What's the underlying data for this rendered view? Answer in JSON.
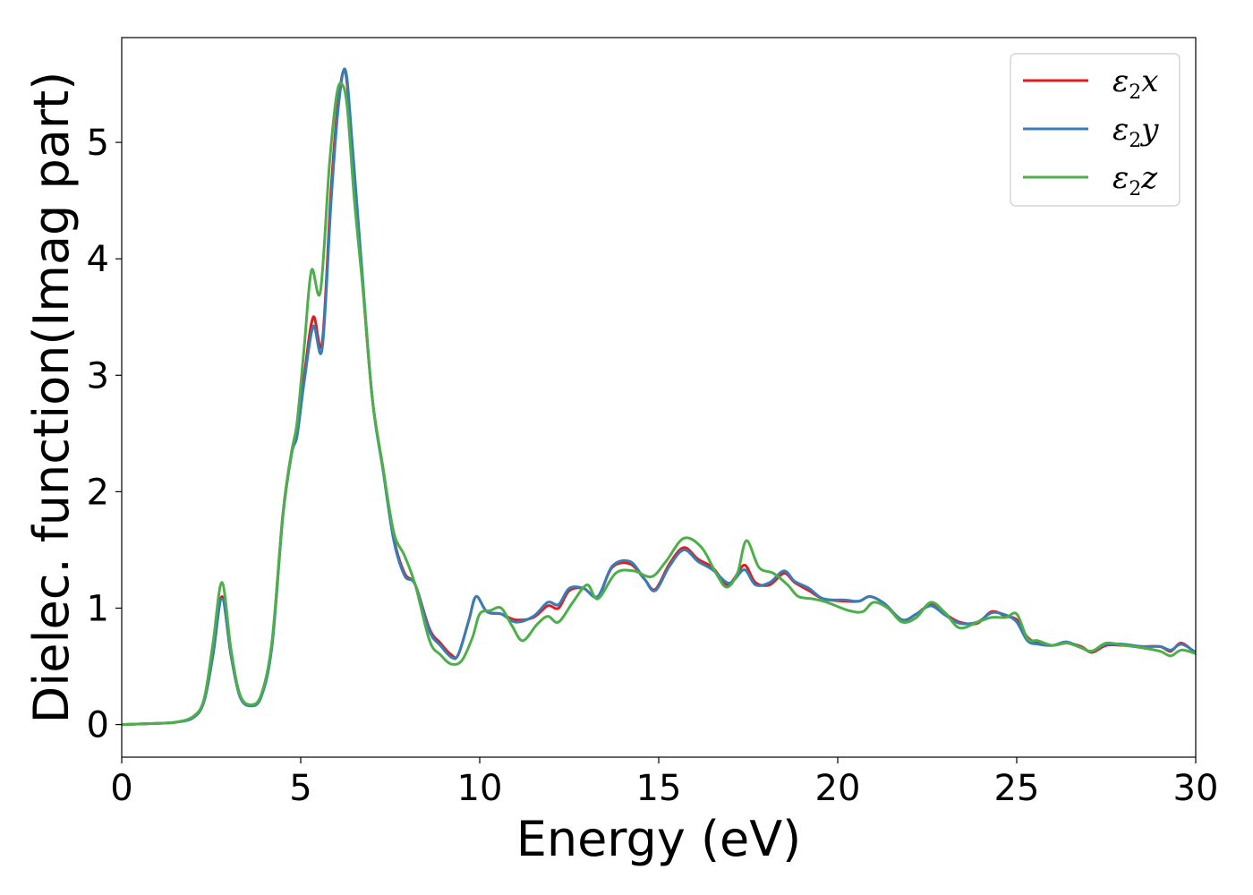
{
  "chart_data": {
    "type": "line",
    "title": "",
    "xlabel": "Energy (eV)",
    "ylabel": "Dielec. function(Imag part)",
    "xlim": [
      0,
      30
    ],
    "ylim": [
      -0.28,
      5.9
    ],
    "xticks": [
      0,
      5,
      10,
      15,
      20,
      25,
      30
    ],
    "xtick_labels": [
      "0",
      "5",
      "10",
      "15",
      "20",
      "25",
      "30"
    ],
    "yticks": [
      0,
      1,
      2,
      3,
      4,
      5
    ],
    "ytick_labels": [
      "0",
      "1",
      "2",
      "3",
      "4",
      "5"
    ],
    "grid": false,
    "legend_position": "top-right",
    "series": [
      {
        "name": "ε2x",
        "legend_base": "ε",
        "legend_sub": "2",
        "legend_suffix": "x",
        "color": "#e41a1c",
        "points": [
          [
            0,
            0.0
          ],
          [
            1.0,
            0.01
          ],
          [
            1.5,
            0.02
          ],
          [
            2.0,
            0.06
          ],
          [
            2.3,
            0.2
          ],
          [
            2.55,
            0.6
          ],
          [
            2.8,
            1.1
          ],
          [
            3.05,
            0.6
          ],
          [
            3.3,
            0.25
          ],
          [
            3.6,
            0.17
          ],
          [
            3.9,
            0.25
          ],
          [
            4.2,
            0.7
          ],
          [
            4.5,
            1.8
          ],
          [
            4.75,
            2.35
          ],
          [
            4.9,
            2.5
          ],
          [
            5.1,
            3.0
          ],
          [
            5.35,
            3.5
          ],
          [
            5.6,
            3.28
          ],
          [
            5.85,
            4.6
          ],
          [
            6.05,
            5.35
          ],
          [
            6.25,
            5.6
          ],
          [
            6.45,
            4.9
          ],
          [
            6.7,
            3.9
          ],
          [
            7.0,
            2.8
          ],
          [
            7.3,
            2.2
          ],
          [
            7.6,
            1.6
          ],
          [
            7.9,
            1.3
          ],
          [
            8.2,
            1.2
          ],
          [
            8.6,
            0.82
          ],
          [
            8.9,
            0.7
          ],
          [
            9.2,
            0.6
          ],
          [
            9.4,
            0.6
          ],
          [
            9.7,
            0.9
          ],
          [
            9.9,
            1.1
          ],
          [
            10.2,
            0.97
          ],
          [
            10.6,
            0.95
          ],
          [
            11.0,
            0.9
          ],
          [
            11.5,
            0.92
          ],
          [
            11.9,
            1.02
          ],
          [
            12.2,
            1.0
          ],
          [
            12.5,
            1.15
          ],
          [
            12.9,
            1.17
          ],
          [
            13.3,
            1.1
          ],
          [
            13.7,
            1.35
          ],
          [
            14.2,
            1.38
          ],
          [
            14.6,
            1.25
          ],
          [
            14.9,
            1.16
          ],
          [
            15.3,
            1.38
          ],
          [
            15.7,
            1.52
          ],
          [
            16.1,
            1.42
          ],
          [
            16.5,
            1.35
          ],
          [
            16.9,
            1.2
          ],
          [
            17.1,
            1.25
          ],
          [
            17.4,
            1.37
          ],
          [
            17.7,
            1.22
          ],
          [
            18.1,
            1.2
          ],
          [
            18.5,
            1.3
          ],
          [
            18.8,
            1.22
          ],
          [
            19.2,
            1.15
          ],
          [
            19.6,
            1.08
          ],
          [
            20.2,
            1.06
          ],
          [
            20.6,
            1.06
          ],
          [
            20.9,
            1.1
          ],
          [
            21.3,
            1.04
          ],
          [
            21.8,
            0.9
          ],
          [
            22.2,
            0.95
          ],
          [
            22.6,
            1.03
          ],
          [
            23.0,
            0.95
          ],
          [
            23.4,
            0.88
          ],
          [
            23.9,
            0.87
          ],
          [
            24.3,
            0.97
          ],
          [
            24.7,
            0.93
          ],
          [
            25.0,
            0.9
          ],
          [
            25.3,
            0.75
          ],
          [
            25.6,
            0.7
          ],
          [
            26.0,
            0.68
          ],
          [
            26.4,
            0.7
          ],
          [
            26.8,
            0.67
          ],
          [
            27.1,
            0.62
          ],
          [
            27.5,
            0.68
          ],
          [
            28.0,
            0.68
          ],
          [
            28.5,
            0.67
          ],
          [
            29.0,
            0.67
          ],
          [
            29.3,
            0.63
          ],
          [
            29.6,
            0.7
          ],
          [
            30.0,
            0.61
          ]
        ]
      },
      {
        "name": "ε2y",
        "legend_base": "ε",
        "legend_sub": "2",
        "legend_suffix": "y",
        "color": "#377eb8",
        "points": [
          [
            0,
            0.0
          ],
          [
            1.0,
            0.01
          ],
          [
            1.5,
            0.02
          ],
          [
            2.0,
            0.06
          ],
          [
            2.3,
            0.2
          ],
          [
            2.55,
            0.6
          ],
          [
            2.8,
            1.08
          ],
          [
            3.05,
            0.6
          ],
          [
            3.3,
            0.24
          ],
          [
            3.6,
            0.16
          ],
          [
            3.9,
            0.24
          ],
          [
            4.2,
            0.68
          ],
          [
            4.5,
            1.78
          ],
          [
            4.75,
            2.33
          ],
          [
            4.9,
            2.48
          ],
          [
            5.1,
            2.95
          ],
          [
            5.35,
            3.42
          ],
          [
            5.6,
            3.23
          ],
          [
            5.85,
            4.5
          ],
          [
            6.05,
            5.3
          ],
          [
            6.25,
            5.62
          ],
          [
            6.45,
            4.95
          ],
          [
            6.7,
            3.95
          ],
          [
            7.0,
            2.8
          ],
          [
            7.3,
            2.18
          ],
          [
            7.6,
            1.58
          ],
          [
            7.9,
            1.28
          ],
          [
            8.2,
            1.2
          ],
          [
            8.6,
            0.8
          ],
          [
            8.9,
            0.68
          ],
          [
            9.2,
            0.58
          ],
          [
            9.4,
            0.6
          ],
          [
            9.7,
            0.9
          ],
          [
            9.9,
            1.1
          ],
          [
            10.2,
            0.97
          ],
          [
            10.6,
            0.95
          ],
          [
            11.0,
            0.88
          ],
          [
            11.5,
            0.93
          ],
          [
            11.9,
            1.05
          ],
          [
            12.2,
            1.03
          ],
          [
            12.5,
            1.17
          ],
          [
            12.9,
            1.17
          ],
          [
            13.3,
            1.1
          ],
          [
            13.7,
            1.36
          ],
          [
            14.2,
            1.4
          ],
          [
            14.6,
            1.25
          ],
          [
            14.9,
            1.15
          ],
          [
            15.3,
            1.36
          ],
          [
            15.7,
            1.5
          ],
          [
            16.1,
            1.4
          ],
          [
            16.5,
            1.33
          ],
          [
            16.9,
            1.22
          ],
          [
            17.1,
            1.24
          ],
          [
            17.4,
            1.33
          ],
          [
            17.7,
            1.2
          ],
          [
            18.1,
            1.22
          ],
          [
            18.5,
            1.32
          ],
          [
            18.8,
            1.23
          ],
          [
            19.2,
            1.17
          ],
          [
            19.6,
            1.08
          ],
          [
            20.2,
            1.07
          ],
          [
            20.6,
            1.06
          ],
          [
            20.9,
            1.1
          ],
          [
            21.3,
            1.04
          ],
          [
            21.8,
            0.9
          ],
          [
            22.2,
            0.95
          ],
          [
            22.6,
            1.02
          ],
          [
            23.0,
            0.94
          ],
          [
            23.4,
            0.87
          ],
          [
            23.9,
            0.88
          ],
          [
            24.3,
            0.96
          ],
          [
            24.7,
            0.94
          ],
          [
            25.0,
            0.88
          ],
          [
            25.3,
            0.72
          ],
          [
            25.6,
            0.69
          ],
          [
            26.0,
            0.68
          ],
          [
            26.4,
            0.71
          ],
          [
            26.8,
            0.66
          ],
          [
            27.1,
            0.63
          ],
          [
            27.5,
            0.69
          ],
          [
            28.0,
            0.69
          ],
          [
            28.5,
            0.67
          ],
          [
            29.0,
            0.67
          ],
          [
            29.3,
            0.64
          ],
          [
            29.6,
            0.69
          ],
          [
            30.0,
            0.62
          ]
        ]
      },
      {
        "name": "ε2z",
        "legend_base": "ε",
        "legend_sub": "2",
        "legend_suffix": "z",
        "color": "#4daf4a",
        "points": [
          [
            0,
            0.0
          ],
          [
            1.0,
            0.01
          ],
          [
            1.5,
            0.02
          ],
          [
            2.0,
            0.07
          ],
          [
            2.3,
            0.22
          ],
          [
            2.55,
            0.7
          ],
          [
            2.8,
            1.22
          ],
          [
            3.05,
            0.65
          ],
          [
            3.3,
            0.26
          ],
          [
            3.6,
            0.17
          ],
          [
            3.9,
            0.26
          ],
          [
            4.2,
            0.72
          ],
          [
            4.5,
            1.8
          ],
          [
            4.75,
            2.35
          ],
          [
            4.9,
            2.6
          ],
          [
            5.1,
            3.25
          ],
          [
            5.3,
            3.9
          ],
          [
            5.55,
            3.72
          ],
          [
            5.8,
            4.8
          ],
          [
            6.0,
            5.4
          ],
          [
            6.15,
            5.5
          ],
          [
            6.3,
            5.3
          ],
          [
            6.5,
            4.5
          ],
          [
            6.75,
            3.7
          ],
          [
            7.0,
            2.8
          ],
          [
            7.3,
            2.2
          ],
          [
            7.6,
            1.65
          ],
          [
            7.9,
            1.45
          ],
          [
            8.2,
            1.2
          ],
          [
            8.6,
            0.72
          ],
          [
            8.9,
            0.6
          ],
          [
            9.2,
            0.52
          ],
          [
            9.5,
            0.55
          ],
          [
            9.8,
            0.75
          ],
          [
            10.0,
            0.95
          ],
          [
            10.3,
            0.98
          ],
          [
            10.6,
            1.0
          ],
          [
            10.9,
            0.85
          ],
          [
            11.2,
            0.72
          ],
          [
            11.6,
            0.86
          ],
          [
            11.9,
            0.93
          ],
          [
            12.2,
            0.88
          ],
          [
            12.6,
            1.05
          ],
          [
            13.0,
            1.2
          ],
          [
            13.3,
            1.08
          ],
          [
            13.8,
            1.3
          ],
          [
            14.3,
            1.32
          ],
          [
            14.8,
            1.27
          ],
          [
            15.2,
            1.4
          ],
          [
            15.7,
            1.6
          ],
          [
            16.2,
            1.52
          ],
          [
            16.6,
            1.3
          ],
          [
            16.9,
            1.18
          ],
          [
            17.2,
            1.3
          ],
          [
            17.45,
            1.58
          ],
          [
            17.8,
            1.35
          ],
          [
            18.2,
            1.3
          ],
          [
            18.6,
            1.2
          ],
          [
            18.9,
            1.1
          ],
          [
            19.3,
            1.08
          ],
          [
            19.7,
            1.05
          ],
          [
            20.3,
            0.98
          ],
          [
            20.7,
            0.97
          ],
          [
            21.0,
            1.05
          ],
          [
            21.4,
            1.0
          ],
          [
            21.8,
            0.88
          ],
          [
            22.2,
            0.92
          ],
          [
            22.6,
            1.05
          ],
          [
            23.0,
            0.96
          ],
          [
            23.4,
            0.83
          ],
          [
            23.9,
            0.88
          ],
          [
            24.3,
            0.92
          ],
          [
            24.7,
            0.92
          ],
          [
            25.0,
            0.95
          ],
          [
            25.3,
            0.74
          ],
          [
            25.6,
            0.72
          ],
          [
            26.0,
            0.68
          ],
          [
            26.4,
            0.7
          ],
          [
            26.8,
            0.66
          ],
          [
            27.1,
            0.63
          ],
          [
            27.5,
            0.7
          ],
          [
            28.0,
            0.68
          ],
          [
            28.5,
            0.66
          ],
          [
            29.0,
            0.63
          ],
          [
            29.3,
            0.59
          ],
          [
            29.6,
            0.64
          ],
          [
            30.0,
            0.61
          ]
        ]
      }
    ]
  }
}
